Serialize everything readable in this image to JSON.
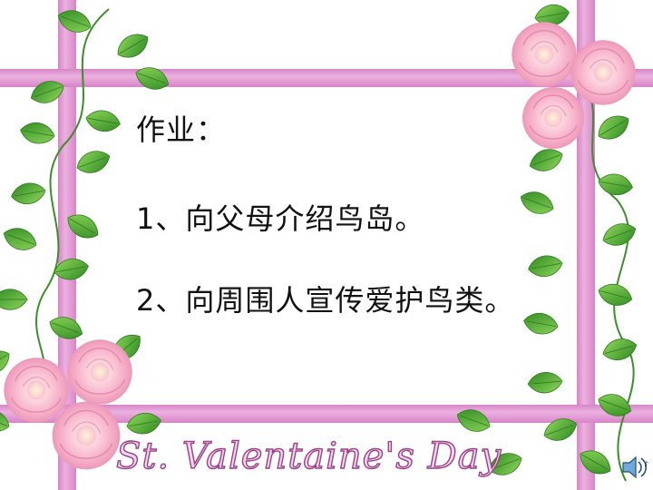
{
  "slide": {
    "heading": "作业：",
    "items": [
      "1、向父母介绍鸟岛。",
      "2、向周围人宣传爱护鸟类。"
    ],
    "footer_script": "St. Valentaine's Day"
  },
  "icons": {
    "audio": "speaker-icon"
  },
  "colors": {
    "border_pink": "#e6a6da",
    "border_pink_dark": "#d884c8",
    "rose_pink": "#f7b7cf",
    "leaf_green": "#3d9a2c",
    "script_outline": "#9a3f88"
  }
}
